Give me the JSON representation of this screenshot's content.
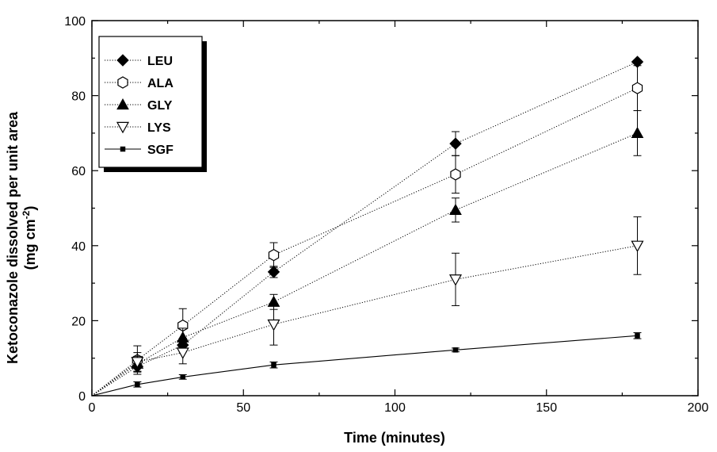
{
  "chart_data": {
    "type": "line",
    "xlabel": "Time (minutes)",
    "ylabel_line1": "Ketoconazole dissolved per unit area",
    "ylabel_line2_prefix": "(mg cm",
    "ylabel_line2_sup": "-2",
    "ylabel_line2_suffix": ")",
    "xlim": [
      0,
      200
    ],
    "ylim": [
      0,
      100
    ],
    "xticks": [
      "0",
      "50",
      "100",
      "150",
      "200"
    ],
    "yticks": [
      "0",
      "20",
      "40",
      "60",
      "80",
      "100"
    ],
    "xtick_values": [
      0,
      50,
      100,
      150,
      200
    ],
    "ytick_values": [
      0,
      20,
      40,
      60,
      80,
      100
    ],
    "grid": false,
    "legend_position": "top-left",
    "series": [
      {
        "name": "LEU",
        "marker": "diamond-filled",
        "line": "dotted",
        "x": [
          0,
          15,
          30,
          60,
          120,
          180
        ],
        "y": [
          0,
          7.8,
          13.5,
          33,
          67.2,
          89
        ],
        "err": [
          0,
          1.5,
          1.8,
          1.5,
          3.2,
          0.5
        ]
      },
      {
        "name": "ALA",
        "marker": "hexagon-open",
        "line": "dotted",
        "x": [
          0,
          15,
          30,
          60,
          120,
          180
        ],
        "y": [
          0,
          9.5,
          18.7,
          37.5,
          59,
          82
        ],
        "err": [
          0,
          3.8,
          4.5,
          3.3,
          5,
          6
        ]
      },
      {
        "name": "GLY",
        "marker": "triangle-up-filled",
        "line": "dotted",
        "x": [
          0,
          15,
          30,
          60,
          120,
          180
        ],
        "y": [
          0,
          8.5,
          15.5,
          25,
          49.5,
          70
        ],
        "err": [
          0,
          2,
          2.5,
          2,
          3.2,
          6
        ]
      },
      {
        "name": "LYS",
        "marker": "triangle-down-open",
        "line": "dotted",
        "x": [
          0,
          15,
          30,
          60,
          120,
          180
        ],
        "y": [
          0,
          9,
          11.5,
          19,
          31,
          40
        ],
        "err": [
          0,
          2.5,
          3,
          5.5,
          7,
          7.7
        ]
      },
      {
        "name": "SGF",
        "marker": "square-filled",
        "line": "solid",
        "x": [
          0,
          15,
          30,
          60,
          120,
          180
        ],
        "y": [
          0,
          3,
          5,
          8.2,
          12.2,
          16
        ],
        "err": [
          0,
          0.7,
          0.6,
          0.8,
          0.5,
          0.8
        ]
      }
    ]
  }
}
